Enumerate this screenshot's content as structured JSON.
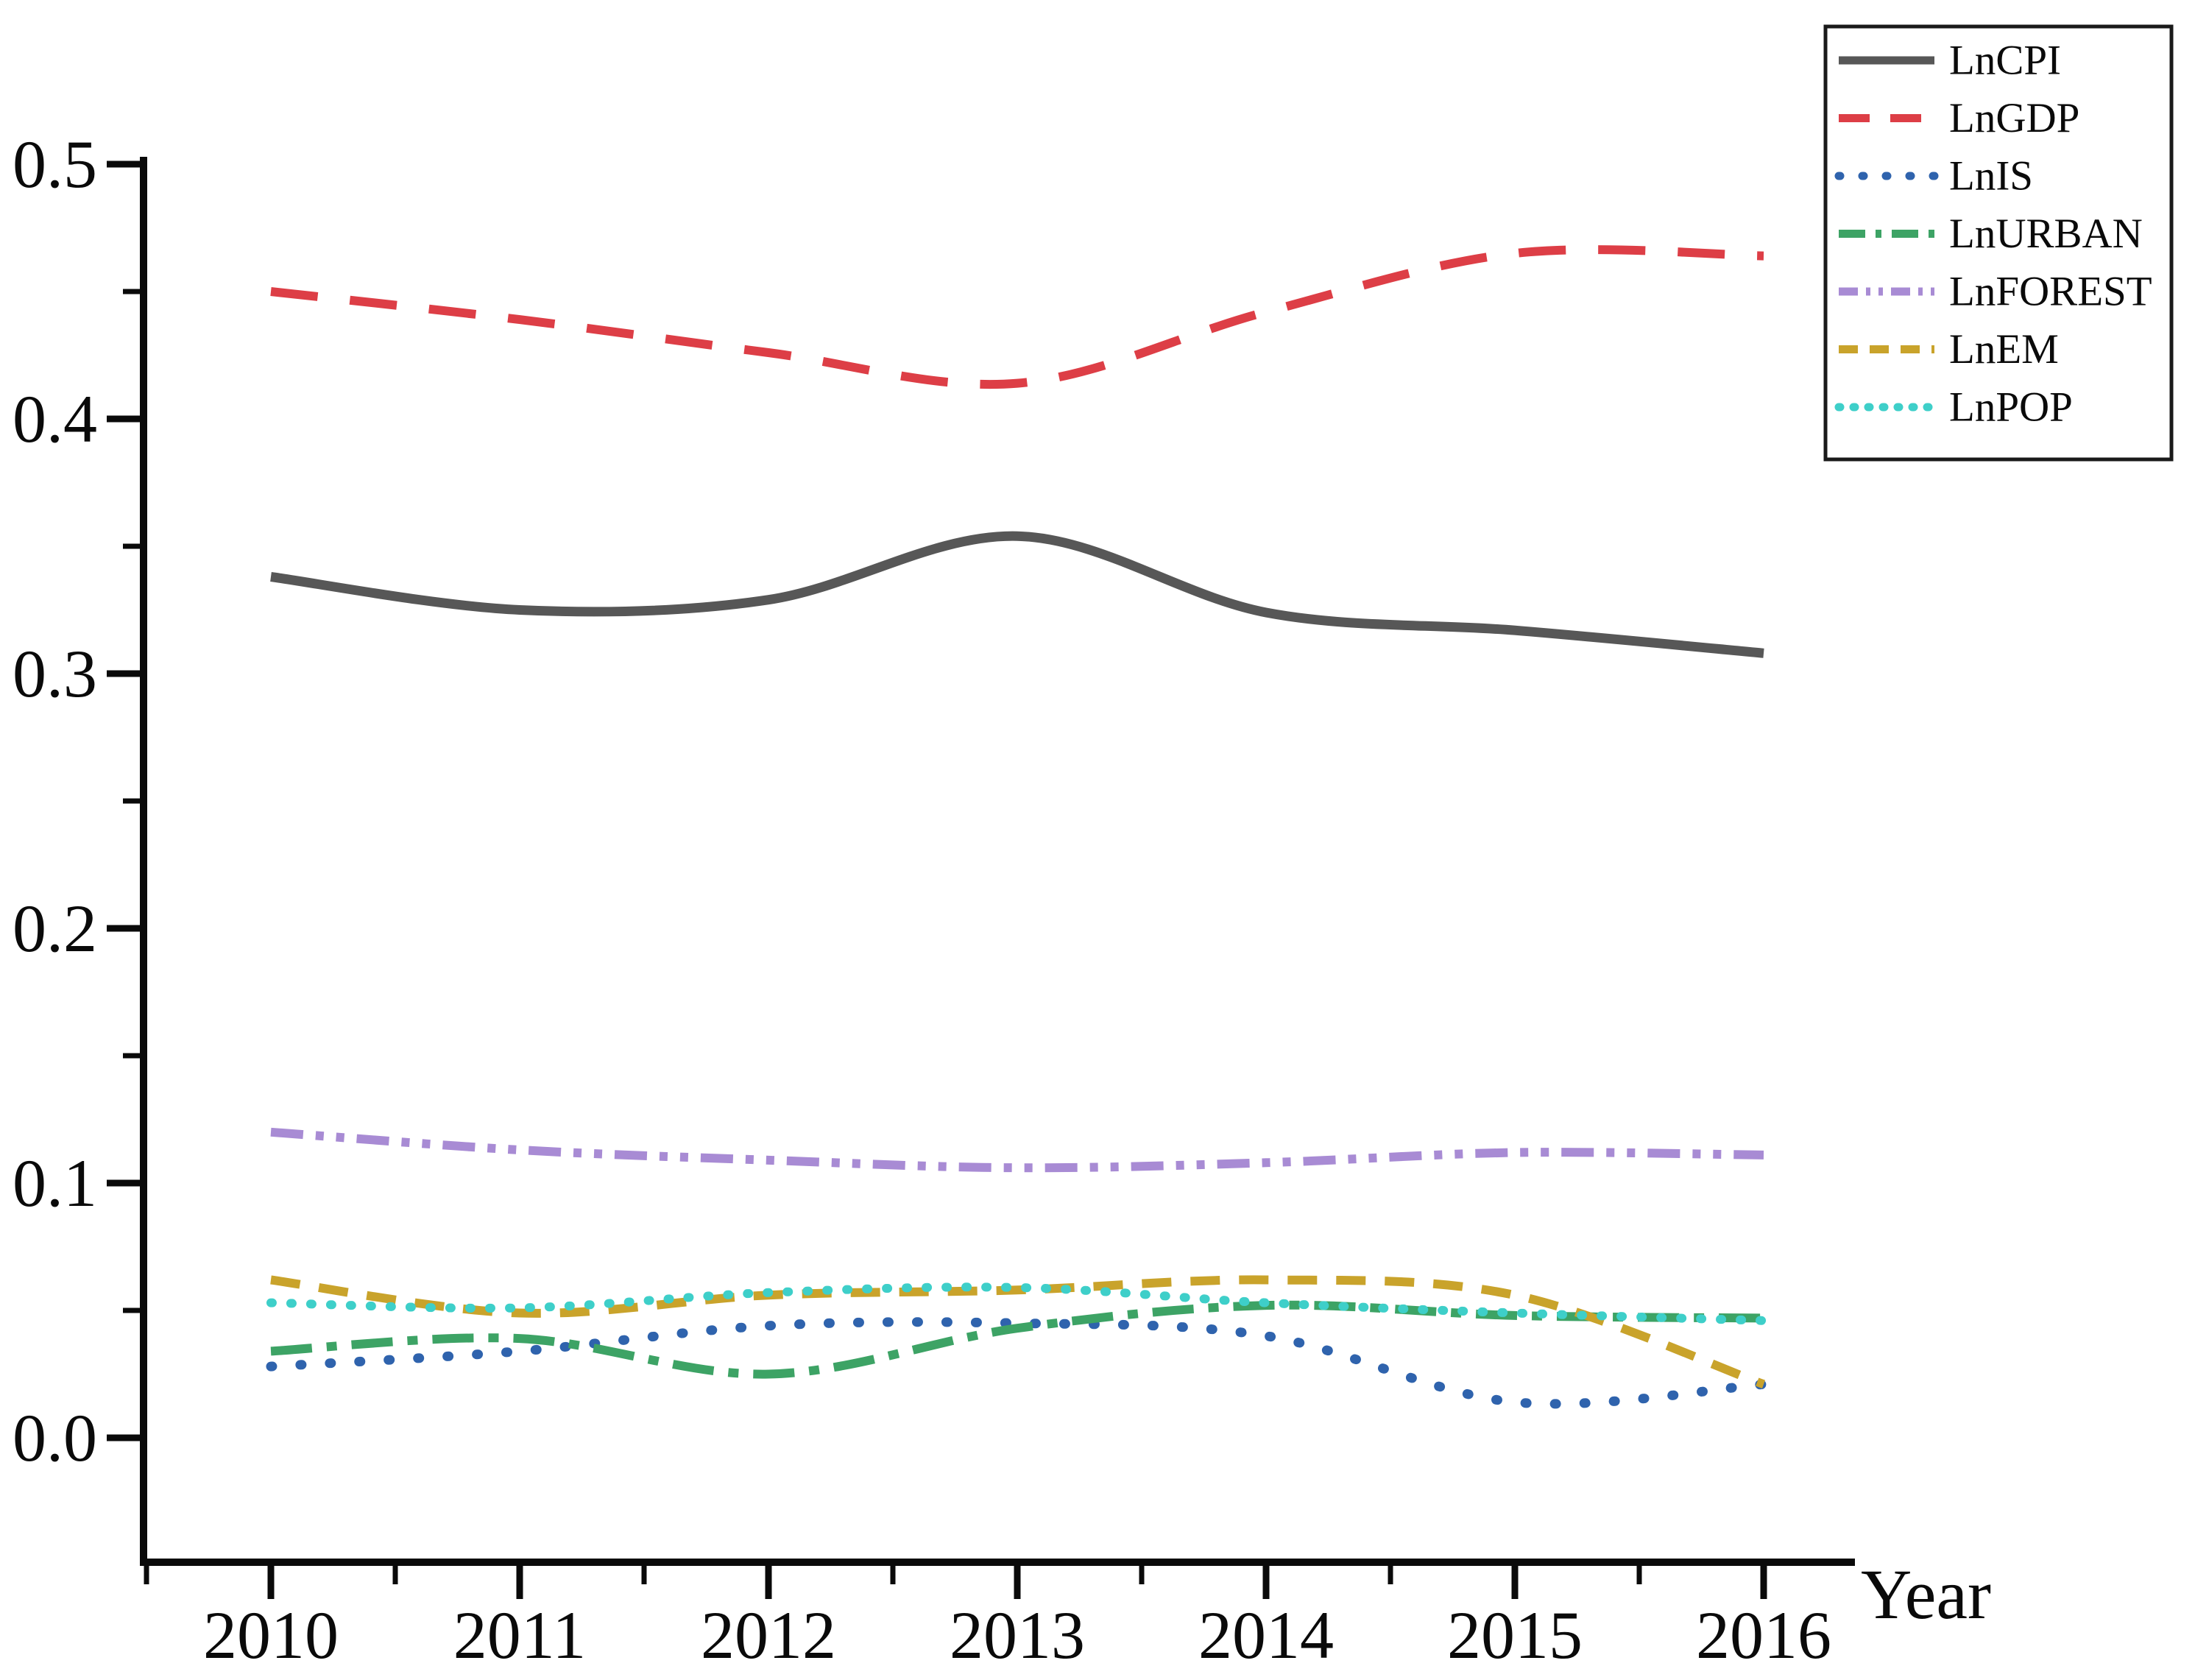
{
  "chart_data": {
    "type": "line",
    "title": "",
    "xlabel": "Year",
    "ylabel": "",
    "x": [
      2010,
      2011,
      2012,
      2013,
      2014,
      2015,
      2016
    ],
    "xtick_labels": [
      "2010",
      "2011",
      "2012",
      "2013",
      "2014",
      "2015",
      "2016"
    ],
    "yticks": [
      0.0,
      0.1,
      0.2,
      0.3,
      0.4,
      0.5
    ],
    "ytick_labels": [
      "0.0",
      "0.1",
      "0.2",
      "0.3",
      "0.4",
      "0.5"
    ],
    "y_minor_ticks": [
      0.05,
      0.15,
      0.25,
      0.35,
      0.45
    ],
    "x_minor_ticks": [
      2009.5,
      2010.5,
      2011.5,
      2012.5,
      2013.5,
      2014.5,
      2015.5
    ],
    "ylim": [
      -0.049,
      0.52
    ],
    "xlim": [
      2009.49,
      2016.37
    ],
    "grid": false,
    "legend_position": "top-right",
    "axis_color": "#0a0a0a",
    "series": [
      {
        "name": "LnCPI",
        "color": "#575757",
        "line_style": "solid",
        "values": [
          0.338,
          0.325,
          0.329,
          0.354,
          0.324,
          0.317,
          0.308
        ]
      },
      {
        "name": "LnGDP",
        "color": "#dd3e46",
        "line_style": "dashed",
        "values": [
          0.45,
          0.439,
          0.426,
          0.414,
          0.442,
          0.465,
          0.464
        ]
      },
      {
        "name": "LnIS",
        "color": "#2f63ad",
        "line_style": "dotted",
        "values": [
          0.028,
          0.034,
          0.044,
          0.045,
          0.04,
          0.014,
          0.021
        ]
      },
      {
        "name": "LnURBAN",
        "color": "#3da365",
        "line_style": "dashdot",
        "values": [
          0.034,
          0.039,
          0.025,
          0.043,
          0.052,
          0.048,
          0.047
        ]
      },
      {
        "name": "LnFOREST",
        "color": "#a88bd4",
        "line_style": "dashdotdot",
        "values": [
          0.12,
          0.113,
          0.109,
          0.106,
          0.108,
          0.112,
          0.111
        ]
      },
      {
        "name": "LnEM",
        "color": "#c9a32b",
        "line_style": "dashed-short",
        "values": [
          0.062,
          0.049,
          0.056,
          0.058,
          0.062,
          0.056,
          0.021
        ]
      },
      {
        "name": "LnPOP",
        "color": "#3ecfc9",
        "line_style": "dotted-round",
        "values": [
          0.053,
          0.051,
          0.057,
          0.059,
          0.053,
          0.049,
          0.046
        ]
      }
    ]
  }
}
